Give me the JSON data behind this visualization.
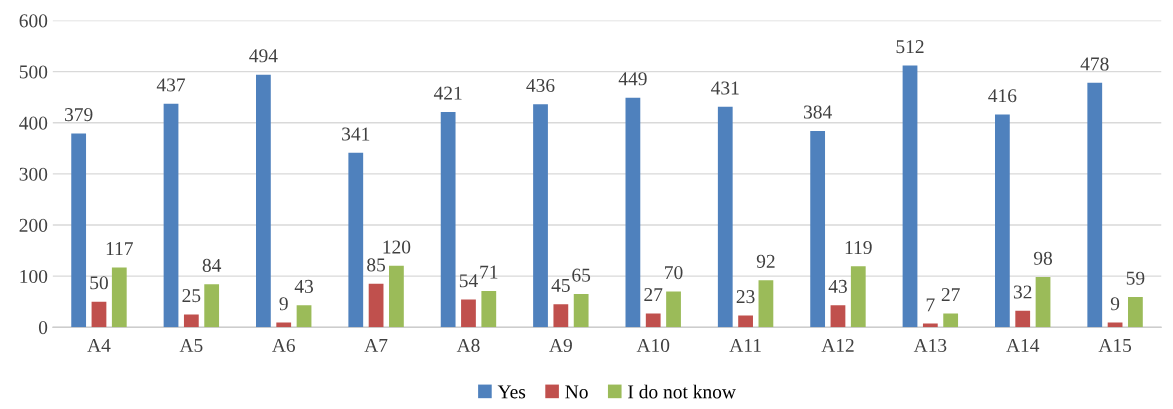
{
  "chart_data": {
    "type": "bar",
    "categories": [
      "A4",
      "A5",
      "A6",
      "A7",
      "A8",
      "A9",
      "A10",
      "A11",
      "A12",
      "A13",
      "A14",
      "A15"
    ],
    "series": [
      {
        "name": "Yes",
        "color": "#4f81bd",
        "values": [
          379,
          437,
          494,
          341,
          421,
          436,
          449,
          431,
          384,
          512,
          416,
          478
        ]
      },
      {
        "name": "No",
        "color": "#c0504d",
        "values": [
          50,
          25,
          9,
          85,
          54,
          45,
          27,
          23,
          43,
          7,
          32,
          9
        ]
      },
      {
        "name": "I do not know",
        "color": "#9bbb59",
        "values": [
          117,
          84,
          43,
          120,
          71,
          65,
          70,
          92,
          119,
          27,
          98,
          59
        ]
      }
    ],
    "ylim": [
      0,
      600
    ],
    "yticks": [
      0,
      100,
      200,
      300,
      400,
      500,
      600
    ],
    "grid": "y",
    "legend": "bottom",
    "data_labels": true
  }
}
